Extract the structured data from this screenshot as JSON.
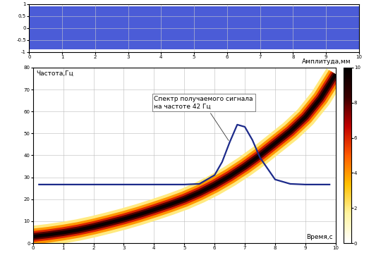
{
  "chart_data": [
    {
      "type": "area",
      "x": [
        0,
        1,
        2,
        3,
        4,
        5,
        6,
        7,
        8,
        9,
        10
      ],
      "upper": [
        0.9,
        0.9,
        0.9,
        0.9,
        0.9,
        0.9,
        0.9,
        0.9,
        0.9,
        0.9,
        0.9
      ],
      "lower": [
        -0.9,
        -0.9,
        -0.9,
        -0.9,
        -0.9,
        -0.9,
        -0.9,
        -0.9,
        -0.9,
        -0.9,
        -0.9
      ],
      "color": "#2b3fd0",
      "xlim": [
        0,
        10
      ],
      "xticks": [
        0,
        1,
        2,
        3,
        4,
        5,
        6,
        7,
        8,
        9,
        10
      ],
      "ylim": [
        -1,
        1
      ],
      "yticks": [
        -1,
        -0.5,
        0,
        0.5,
        1
      ]
    },
    {
      "type": "spectrogram",
      "y_label": "Частота,Гц",
      "x_label": "Время,с",
      "x": [
        0,
        0.5,
        1,
        1.5,
        2,
        2.5,
        3,
        3.5,
        4,
        4.5,
        5,
        5.5,
        6,
        6.5,
        7,
        7.5,
        8,
        8.5,
        9,
        9.5,
        10
      ],
      "ridge": [
        3,
        3.8,
        4.8,
        6,
        7.5,
        9.2,
        11,
        13,
        15.2,
        17.5,
        20,
        23,
        26.5,
        30.5,
        35,
        40,
        45.5,
        51,
        57.5,
        66,
        77
      ],
      "curve": {
        "x": [
          0.2,
          1,
          2,
          3,
          4,
          5,
          5.5,
          6,
          6.25,
          6.5,
          6.75,
          7,
          7.25,
          7.5,
          8,
          8.5,
          9,
          9.8
        ],
        "values": [
          26.7,
          26.7,
          26.7,
          26.7,
          26.7,
          26.7,
          27,
          31,
          37,
          46,
          54,
          53,
          47,
          39,
          29,
          27,
          26.7,
          26.7
        ],
        "color": "#1c2a8a"
      },
      "annotation": "Спектр получаемого сигнала\nна частоте 42 Гц",
      "xlim": [
        0,
        10
      ],
      "xticks": [
        0,
        1,
        2,
        3,
        4,
        5,
        6,
        7,
        8,
        9,
        10
      ],
      "ylim": [
        0,
        80
      ],
      "yticks": [
        0,
        10,
        20,
        30,
        40,
        50,
        60,
        70,
        80
      ],
      "colorbar": {
        "label": "Амплитуда,мм",
        "range": [
          0,
          10
        ],
        "ticks": [
          0,
          2,
          4,
          6,
          8,
          10
        ]
      }
    }
  ]
}
